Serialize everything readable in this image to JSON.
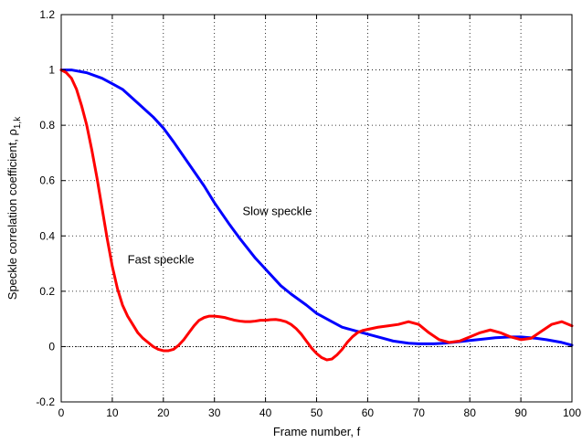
{
  "chart_data": {
    "type": "line",
    "title": "",
    "xlabel": "Frame number, f",
    "ylabel": "Speckle correlation coefficient, ρ",
    "ylabel_subscript": "1,k",
    "xlim": [
      0,
      100
    ],
    "ylim": [
      -0.2,
      1.2
    ],
    "x_ticks": [
      0,
      10,
      20,
      30,
      40,
      50,
      60,
      70,
      80,
      90,
      100
    ],
    "y_ticks": [
      -0.2,
      0,
      0.2,
      0.4,
      0.6,
      0.8,
      1,
      1.2
    ],
    "y_tick_labels": [
      "-0.2",
      "0",
      "0.2",
      "0.4",
      "0.6",
      "0.8",
      "1",
      "1.2"
    ],
    "grid": true,
    "baseline_y": 0,
    "series": [
      {
        "color": "#0000ff",
        "x": [
          0,
          2,
          5,
          8,
          10,
          12,
          15,
          18,
          20,
          22,
          25,
          28,
          30,
          33,
          35,
          38,
          40,
          43,
          45,
          48,
          50,
          53,
          55,
          58,
          60,
          63,
          65,
          68,
          70,
          73,
          75,
          78,
          80,
          83,
          85,
          88,
          90,
          93,
          95,
          98,
          100
        ],
        "y": [
          1.0,
          1.0,
          0.99,
          0.97,
          0.95,
          0.93,
          0.88,
          0.83,
          0.79,
          0.74,
          0.66,
          0.58,
          0.52,
          0.44,
          0.39,
          0.32,
          0.28,
          0.22,
          0.19,
          0.15,
          0.12,
          0.09,
          0.07,
          0.055,
          0.045,
          0.03,
          0.02,
          0.012,
          0.01,
          0.01,
          0.012,
          0.018,
          0.022,
          0.028,
          0.032,
          0.035,
          0.035,
          0.03,
          0.025,
          0.015,
          0.005
        ]
      },
      {
        "color": "#ff0000",
        "x": [
          0,
          1,
          2,
          3,
          4,
          5,
          6,
          7,
          8,
          9,
          10,
          11,
          12,
          13,
          14,
          15,
          16,
          17,
          18,
          19,
          20,
          21,
          22,
          23,
          24,
          25,
          26,
          27,
          28,
          29,
          30,
          31,
          32,
          33,
          34,
          35,
          36,
          37,
          38,
          39,
          40,
          41,
          42,
          43,
          44,
          45,
          46,
          47,
          48,
          49,
          50,
          51,
          52,
          53,
          54,
          55,
          56,
          57,
          58,
          59,
          60,
          62,
          64,
          66,
          68,
          70,
          72,
          74,
          76,
          78,
          80,
          82,
          84,
          86,
          88,
          90,
          92,
          94,
          96,
          98,
          100
        ],
        "y": [
          1.0,
          0.99,
          0.97,
          0.93,
          0.87,
          0.8,
          0.71,
          0.61,
          0.5,
          0.39,
          0.29,
          0.21,
          0.15,
          0.11,
          0.08,
          0.05,
          0.03,
          0.015,
          0.0,
          -0.01,
          -0.015,
          -0.015,
          -0.01,
          0.005,
          0.025,
          0.05,
          0.075,
          0.095,
          0.105,
          0.11,
          0.11,
          0.108,
          0.105,
          0.1,
          0.095,
          0.092,
          0.09,
          0.09,
          0.092,
          0.095,
          0.095,
          0.097,
          0.098,
          0.095,
          0.09,
          0.08,
          0.065,
          0.045,
          0.02,
          -0.005,
          -0.025,
          -0.04,
          -0.048,
          -0.045,
          -0.03,
          -0.01,
          0.015,
          0.035,
          0.05,
          0.058,
          0.062,
          0.07,
          0.075,
          0.08,
          0.09,
          0.08,
          0.05,
          0.025,
          0.015,
          0.02,
          0.035,
          0.05,
          0.06,
          0.05,
          0.035,
          0.025,
          0.03,
          0.055,
          0.08,
          0.09,
          0.075
        ]
      }
    ],
    "annotations": [
      {
        "text": "Slow speckle",
        "x": 35.5,
        "y": 0.475
      },
      {
        "text": "Fast speckle",
        "x": 13,
        "y": 0.3
      }
    ]
  }
}
